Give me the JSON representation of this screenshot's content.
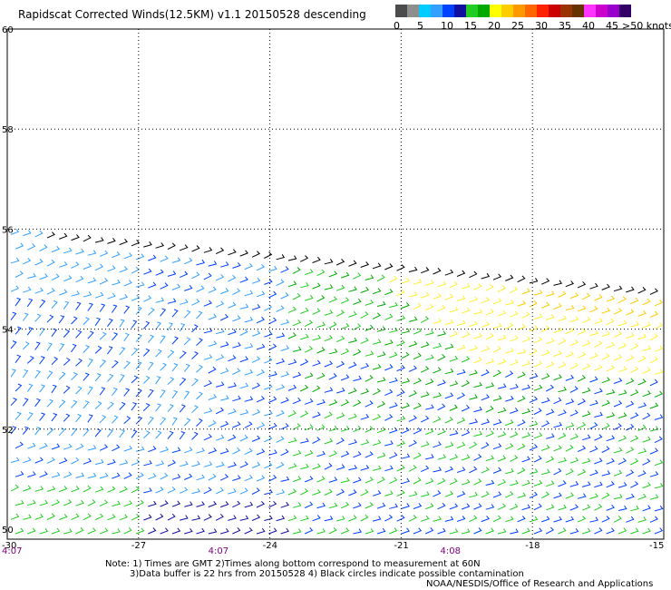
{
  "title": "Rapidscat Corrected Winds(12.5KM) v1.1 20150528 descending",
  "legend": {
    "unit_label": ">50 knots",
    "ticks": [
      "0",
      "5",
      "10",
      "15",
      "20",
      "25",
      "30",
      "35",
      "40",
      "45"
    ],
    "colors": [
      "#4c4c4c",
      "#8e8e8e",
      "#00ccff",
      "#33a0ff",
      "#0040ff",
      "#1010a0",
      "#22cc22",
      "#00aa00",
      "#ffff00",
      "#ffcc00",
      "#ff9900",
      "#ff6600",
      "#ff2200",
      "#cc0000",
      "#993300",
      "#663300",
      "#ff33ff",
      "#cc00cc",
      "#9900cc",
      "#330066"
    ]
  },
  "map": {
    "lat_labels": [
      "60",
      "58",
      "56",
      "54",
      "52",
      "50"
    ],
    "lon_labels": [
      "-30",
      "-27",
      "-24",
      "-21",
      "-18",
      "-15"
    ],
    "time_labels": [
      "4:07",
      "4:07",
      "4:08"
    ],
    "time_color": "#800080",
    "lat_range": [
      49.8,
      60
    ],
    "lon_range": [
      -30,
      -15
    ],
    "swath_top_lat": 56
  },
  "notes": {
    "line1": "Note: 1) Times are GMT 2)Times along bottom correspond to measurement at 60N",
    "line2": "3)Data buffer is 22 hrs from 20150528 4) Black circles indicate possible contamination",
    "credit": "NOAA/NESDIS/Office of Research and Applications"
  }
}
